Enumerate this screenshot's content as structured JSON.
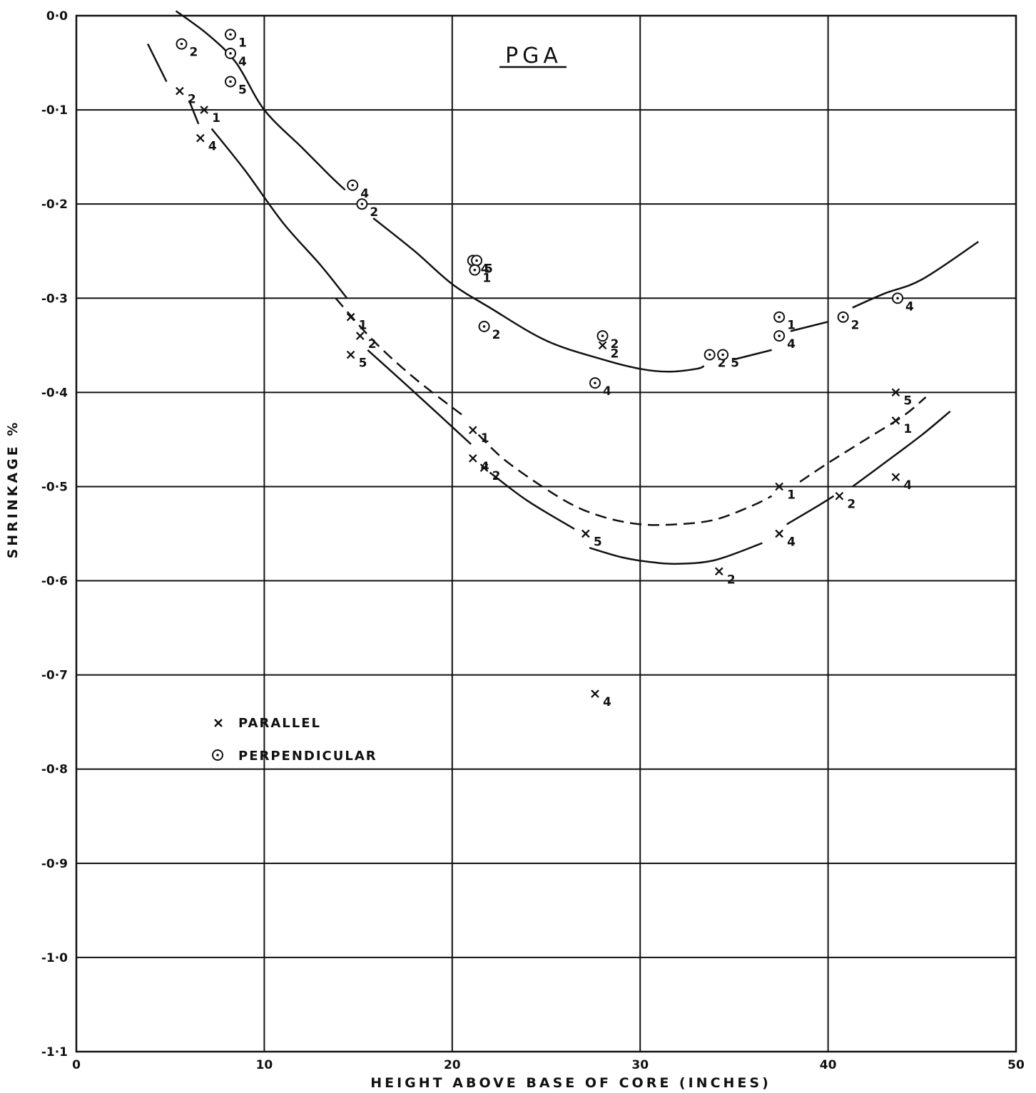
{
  "chart_data": {
    "type": "scatter",
    "title": "PGA",
    "xlabel": "HEIGHT  ABOVE  BASE  OF  CORE  (INCHES)",
    "ylabel": "SHRINKAGE %",
    "xlim": [
      0,
      50
    ],
    "ylim": [
      -1.1,
      0.0
    ],
    "xticks": [
      0,
      10,
      20,
      30,
      40,
      50
    ],
    "xtick_labels": [
      "0",
      "10",
      "20",
      "30",
      "40",
      "50"
    ],
    "yticks": [
      0.0,
      -0.1,
      -0.2,
      -0.3,
      -0.4,
      -0.5,
      -0.6,
      -0.7,
      -0.8,
      -0.9,
      -1.0,
      -1.1
    ],
    "ytick_labels": [
      "0·0",
      "-0·1",
      "-0·2",
      "-0·3",
      "-0·4",
      "-0·5",
      "-0·6",
      "-0·7",
      "-0·8",
      "-0·9",
      "-1·0",
      "-1·1"
    ],
    "grid": true,
    "legend_position": "lower-left",
    "series": [
      {
        "name": "PARALLEL",
        "marker": "cross",
        "points": [
          {
            "x": 5.5,
            "y": -0.08,
            "label": "2"
          },
          {
            "x": 6.8,
            "y": -0.1,
            "label": "1"
          },
          {
            "x": 6.6,
            "y": -0.13,
            "label": "4"
          },
          {
            "x": 14.6,
            "y": -0.32,
            "label": "1"
          },
          {
            "x": 15.1,
            "y": -0.34,
            "label": "2"
          },
          {
            "x": 14.6,
            "y": -0.36,
            "label": "5"
          },
          {
            "x": 21.1,
            "y": -0.44,
            "label": "1"
          },
          {
            "x": 21.1,
            "y": -0.47,
            "label": "4"
          },
          {
            "x": 21.7,
            "y": -0.48,
            "label": "2"
          },
          {
            "x": 27.1,
            "y": -0.55,
            "label": "5"
          },
          {
            "x": 28.0,
            "y": -0.35,
            "label": "2"
          },
          {
            "x": 27.6,
            "y": -0.72,
            "label": "4"
          },
          {
            "x": 34.2,
            "y": -0.59,
            "label": "2"
          },
          {
            "x": 37.4,
            "y": -0.5,
            "label": "1"
          },
          {
            "x": 37.4,
            "y": -0.55,
            "label": "4"
          },
          {
            "x": 40.6,
            "y": -0.51,
            "label": "2"
          },
          {
            "x": 43.6,
            "y": -0.4,
            "label": "5"
          },
          {
            "x": 43.6,
            "y": -0.43,
            "label": "1"
          },
          {
            "x": 43.6,
            "y": -0.49,
            "label": "4"
          }
        ]
      },
      {
        "name": "PERPENDICULAR",
        "marker": "circle-dot",
        "points": [
          {
            "x": 5.6,
            "y": -0.03,
            "label": "2"
          },
          {
            "x": 8.2,
            "y": -0.02,
            "label": "1"
          },
          {
            "x": 8.2,
            "y": -0.04,
            "label": "4"
          },
          {
            "x": 8.2,
            "y": -0.07,
            "label": "5"
          },
          {
            "x": 14.7,
            "y": -0.18,
            "label": "4"
          },
          {
            "x": 15.2,
            "y": -0.2,
            "label": "2"
          },
          {
            "x": 21.1,
            "y": -0.26,
            "label": "4"
          },
          {
            "x": 21.3,
            "y": -0.26,
            "label": "5"
          },
          {
            "x": 21.2,
            "y": -0.27,
            "label": "1"
          },
          {
            "x": 21.7,
            "y": -0.33,
            "label": "2"
          },
          {
            "x": 28.0,
            "y": -0.34,
            "label": "2"
          },
          {
            "x": 27.6,
            "y": -0.39,
            "label": "4"
          },
          {
            "x": 33.7,
            "y": -0.36,
            "label": "2"
          },
          {
            "x": 34.4,
            "y": -0.36,
            "label": "5"
          },
          {
            "x": 37.4,
            "y": -0.32,
            "label": "1"
          },
          {
            "x": 37.4,
            "y": -0.34,
            "label": "4"
          },
          {
            "x": 40.8,
            "y": -0.32,
            "label": "2"
          },
          {
            "x": 43.7,
            "y": -0.3,
            "label": "4"
          }
        ]
      }
    ],
    "curves": [
      {
        "style": "solid",
        "segments": [
          [
            [
              5.3,
              0.005
            ],
            [
              7.0,
              -0.02
            ],
            [
              8.5,
              -0.05
            ],
            [
              10.0,
              -0.1
            ],
            [
              12.0,
              -0.14
            ],
            [
              13.5,
              -0.17
            ],
            [
              14.3,
              -0.185
            ]
          ],
          [
            [
              15.8,
              -0.215
            ],
            [
              18.0,
              -0.25
            ],
            [
              20.0,
              -0.285
            ],
            [
              22.0,
              -0.31
            ],
            [
              25.0,
              -0.345
            ],
            [
              28.0,
              -0.365
            ],
            [
              30.0,
              -0.375
            ],
            [
              31.5,
              -0.378
            ],
            [
              33.0,
              -0.375
            ],
            [
              33.4,
              -0.372
            ]
          ],
          [
            [
              35.0,
              -0.365
            ],
            [
              37.0,
              -0.355
            ]
          ],
          [
            [
              38.0,
              -0.335
            ],
            [
              40.0,
              -0.325
            ]
          ],
          [
            [
              41.3,
              -0.31
            ],
            [
              43.0,
              -0.295
            ],
            [
              45.0,
              -0.28
            ],
            [
              48.0,
              -0.24
            ]
          ]
        ]
      },
      {
        "style": "solid",
        "segments": [
          [
            [
              3.8,
              -0.03
            ],
            [
              4.8,
              -0.07
            ]
          ],
          [
            [
              6.0,
              -0.09
            ],
            [
              6.5,
              -0.115
            ]
          ],
          [
            [
              7.2,
              -0.12
            ],
            [
              9.0,
              -0.165
            ],
            [
              11.0,
              -0.22
            ],
            [
              13.0,
              -0.265
            ],
            [
              14.4,
              -0.3
            ]
          ]
        ]
      },
      {
        "style": "dashed",
        "segments": [
          [
            [
              13.8,
              -0.3
            ],
            [
              15.8,
              -0.345
            ],
            [
              18.0,
              -0.385
            ],
            [
              20.6,
              -0.425
            ]
          ],
          [
            [
              21.4,
              -0.445
            ],
            [
              23.0,
              -0.475
            ],
            [
              26.0,
              -0.515
            ],
            [
              28.0,
              -0.532
            ],
            [
              30.0,
              -0.54
            ],
            [
              32.0,
              -0.54
            ],
            [
              34.0,
              -0.535
            ],
            [
              36.0,
              -0.52
            ],
            [
              37.0,
              -0.51
            ]
          ],
          [
            [
              38.5,
              -0.495
            ],
            [
              40.0,
              -0.475
            ],
            [
              42.0,
              -0.45
            ],
            [
              44.0,
              -0.425
            ],
            [
              45.2,
              -0.405
            ]
          ]
        ]
      },
      {
        "style": "solid",
        "segments": [
          [
            [
              15.5,
              -0.355
            ],
            [
              18.0,
              -0.4
            ],
            [
              21.0,
              -0.455
            ]
          ],
          [
            [
              22.0,
              -0.485
            ],
            [
              24.0,
              -0.515
            ],
            [
              26.5,
              -0.545
            ]
          ],
          [
            [
              27.3,
              -0.565
            ],
            [
              29.0,
              -0.575
            ],
            [
              30.5,
              -0.58
            ],
            [
              32.0,
              -0.582
            ],
            [
              34.0,
              -0.578
            ],
            [
              36.5,
              -0.56
            ]
          ],
          [
            [
              37.8,
              -0.54
            ],
            [
              39.5,
              -0.52
            ],
            [
              40.3,
              -0.51
            ]
          ],
          [
            [
              41.3,
              -0.5
            ],
            [
              43.0,
              -0.475
            ],
            [
              45.0,
              -0.445
            ],
            [
              46.5,
              -0.42
            ]
          ]
        ]
      }
    ]
  }
}
